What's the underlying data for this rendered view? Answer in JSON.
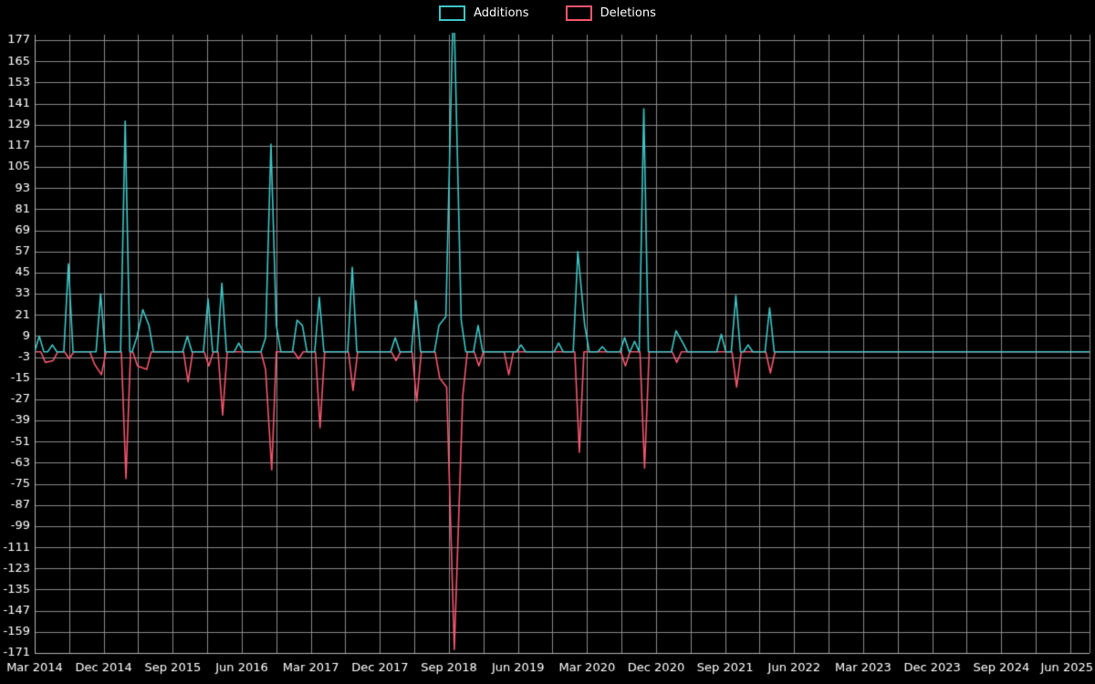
{
  "page": {
    "background": "#000000",
    "text_color": "#ffffff"
  },
  "legend": {
    "items": [
      {
        "label": "Additions",
        "color": "#3ec6c6"
      },
      {
        "label": "Deletions",
        "color": "#f4566e"
      }
    ]
  },
  "chart_data": {
    "type": "line",
    "title": "",
    "xlabel": "",
    "ylabel": "",
    "x_unit": "months since Mar 2014",
    "xlim": [
      0,
      137.5
    ],
    "ylim": [
      -171,
      177
    ],
    "y_tick_step": 12,
    "y_ticks": [
      177,
      165,
      153,
      141,
      129,
      117,
      105,
      93,
      81,
      69,
      57,
      45,
      33,
      21,
      9,
      -3,
      -15,
      -27,
      -39,
      -51,
      -63,
      -75,
      -87,
      -99,
      -111,
      -123,
      -135,
      -147,
      -159,
      -171
    ],
    "x_ticks": [
      {
        "m": 0,
        "label": "Mar 2014"
      },
      {
        "m": 9,
        "label": "Dec 2014"
      },
      {
        "m": 18,
        "label": "Sep 2015"
      },
      {
        "m": 27,
        "label": "Jun 2016"
      },
      {
        "m": 36,
        "label": "Mar 2017"
      },
      {
        "m": 45,
        "label": "Dec 2017"
      },
      {
        "m": 54,
        "label": "Sep 2018"
      },
      {
        "m": 63,
        "label": "Jun 2019"
      },
      {
        "m": 72,
        "label": "Mar 2020"
      },
      {
        "m": 81,
        "label": "Dec 2020"
      },
      {
        "m": 90,
        "label": "Sep 2021"
      },
      {
        "m": 99,
        "label": "Jun 2022"
      },
      {
        "m": 108,
        "label": "Mar 2023"
      },
      {
        "m": 117,
        "label": "Dec 2023"
      },
      {
        "m": 126,
        "label": "Sep 2024"
      },
      {
        "m": 135,
        "label": "Jun 2025"
      }
    ],
    "grid": {
      "color": "#8a8a8a",
      "axis_color": "#b5b5b5",
      "x_minor_step": 4.5
    },
    "legend_position": "top-center",
    "note": "Additions spike at Sep 2018 exceeds top of visible plot (clipped above 177)",
    "series": [
      {
        "name": "Deletions",
        "color": "#f4566e",
        "spikes": [
          [
            1.4,
            -6
          ],
          [
            2.4,
            -5
          ],
          [
            4.5,
            -4
          ],
          [
            7.8,
            -7
          ],
          [
            8.7,
            -13
          ],
          [
            11.9,
            -72
          ],
          [
            13.4,
            -8
          ],
          [
            14.6,
            -10
          ],
          [
            20.0,
            -17
          ],
          [
            22.7,
            -8
          ],
          [
            24.5,
            -36
          ],
          [
            30.1,
            -10
          ],
          [
            30.9,
            -67
          ],
          [
            34.4,
            -4
          ],
          [
            37.2,
            -43
          ],
          [
            41.5,
            -22
          ],
          [
            47.1,
            -5
          ],
          [
            49.8,
            -28
          ],
          [
            52.8,
            -15
          ],
          [
            53.7,
            -20
          ],
          [
            54.7,
            -169
          ],
          [
            55.8,
            -25
          ],
          [
            57.9,
            -8
          ],
          [
            61.8,
            -13
          ],
          [
            71.0,
            -57
          ],
          [
            77.0,
            -8
          ],
          [
            79.5,
            -66
          ],
          [
            83.7,
            -6
          ],
          [
            91.5,
            -20
          ],
          [
            95.9,
            -12
          ]
        ]
      },
      {
        "name": "Additions",
        "color": "#3ec6c6",
        "spikes": [
          [
            0.6,
            9
          ],
          [
            2.3,
            4
          ],
          [
            4.4,
            50
          ],
          [
            8.6,
            33
          ],
          [
            11.8,
            131
          ],
          [
            13.3,
            8
          ],
          [
            14.1,
            24
          ],
          [
            14.9,
            15
          ],
          [
            19.9,
            9
          ],
          [
            22.6,
            30
          ],
          [
            24.4,
            39
          ],
          [
            26.6,
            5
          ],
          [
            30.1,
            8
          ],
          [
            30.8,
            118
          ],
          [
            31.5,
            15
          ],
          [
            34.2,
            18
          ],
          [
            34.9,
            15
          ],
          [
            37.1,
            31
          ],
          [
            41.4,
            48
          ],
          [
            47.0,
            8
          ],
          [
            49.7,
            29
          ],
          [
            52.7,
            15
          ],
          [
            53.6,
            20
          ],
          [
            54.6,
            205
          ],
          [
            55.6,
            18
          ],
          [
            57.8,
            15
          ],
          [
            63.4,
            4
          ],
          [
            68.3,
            5
          ],
          [
            70.8,
            57
          ],
          [
            71.7,
            15
          ],
          [
            74.0,
            3
          ],
          [
            76.9,
            8
          ],
          [
            78.2,
            6
          ],
          [
            79.4,
            138
          ],
          [
            83.6,
            12
          ],
          [
            84.5,
            5
          ],
          [
            89.5,
            10
          ],
          [
            91.4,
            32
          ],
          [
            93.0,
            4
          ],
          [
            95.8,
            25
          ]
        ]
      }
    ]
  }
}
